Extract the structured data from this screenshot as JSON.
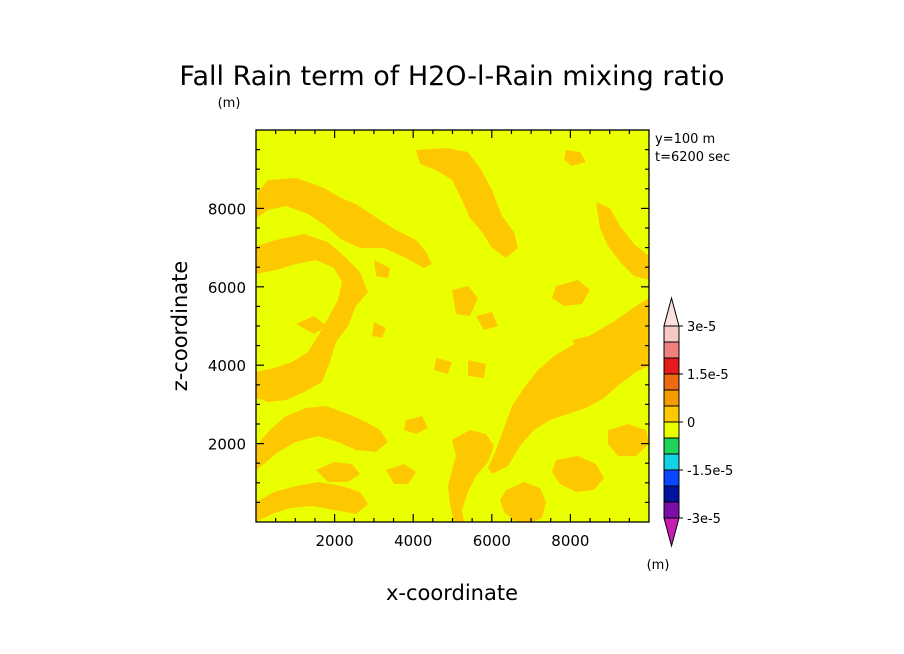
{
  "chart_data": {
    "type": "heatmap",
    "title": "Fall Rain term of H2O-l-Rain mixing ratio",
    "y_unit_label": "(m)",
    "xlabel": "x-coordinate",
    "ylabel": "z-coordinate",
    "xlim": [
      0,
      10000
    ],
    "ylim": [
      0,
      10000
    ],
    "x_ticks": [
      "2000",
      "4000",
      "6000",
      "8000"
    ],
    "y_ticks": [
      "2000",
      "4000",
      "6000",
      "8000"
    ],
    "x_tick_values": [
      2000,
      4000,
      6000,
      8000
    ],
    "y_tick_values": [
      2000,
      4000,
      6000,
      8000
    ],
    "annotations": [
      "y=100 m",
      "t=6200 sec"
    ],
    "colorbar": {
      "labels": [
        "3e-5",
        "1.5e-5",
        "0",
        "-1.5e-5",
        "-3e-5"
      ],
      "unit": "(m)",
      "colors": [
        "#f7c8c8",
        "#f08080",
        "#e61a1a",
        "#ee6a10",
        "#f59b00",
        "#fec800",
        "#eaff00",
        "#1ed25a",
        "#12d2e6",
        "#0a46ff",
        "#0014a0",
        "#7a10a8"
      ],
      "over_color": "#fbe0e0",
      "under_color": "#c81eb4"
    },
    "background_color": "#eaff00",
    "positive_color": "#fec800",
    "regions_description_values": {
      "background_value_range": [
        -2.5e-06,
        0
      ],
      "patch_value_range": [
        0,
        2.5e-06
      ]
    }
  }
}
